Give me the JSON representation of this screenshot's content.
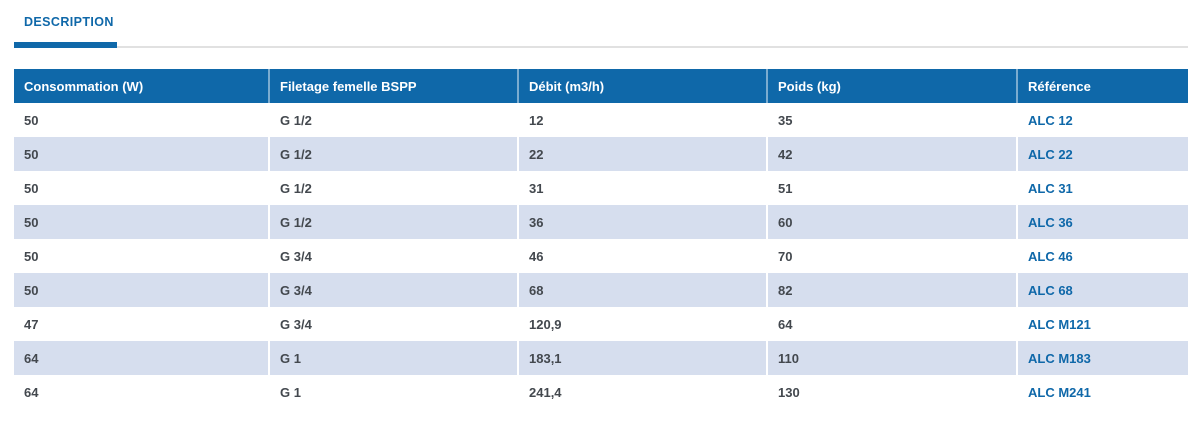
{
  "colors": {
    "brand_blue": "#0f68a9",
    "row_stripe": "#d6deee",
    "rule_gray": "#e1e1e1",
    "cell_text": "#43484e"
  },
  "tabs": {
    "description_label": "DESCRIPTION"
  },
  "table": {
    "columns": [
      "Consommation (W)",
      "Filetage femelle BSPP",
      "Débit (m3/h)",
      "Poids (kg)",
      "Référence"
    ],
    "column_keys": [
      "consommation",
      "filetage",
      "debit",
      "poids",
      "reference"
    ],
    "rows": [
      [
        "50",
        "G 1/2",
        "12",
        "35",
        "ALC 12"
      ],
      [
        "50",
        "G 1/2",
        "22",
        "42",
        "ALC 22"
      ],
      [
        "50",
        "G 1/2",
        "31",
        "51",
        "ALC 31"
      ],
      [
        "50",
        "G 1/2",
        "36",
        "60",
        "ALC 36"
      ],
      [
        "50",
        "G 3/4",
        "46",
        "70",
        "ALC 46"
      ],
      [
        "50",
        "G 3/4",
        "68",
        "82",
        "ALC 68"
      ],
      [
        "47",
        "G 3/4",
        "120,9",
        "64",
        "ALC M121"
      ],
      [
        "64",
        "G 1",
        "183,1",
        "110",
        "ALC M183"
      ],
      [
        "64",
        "G 1",
        "241,4",
        "130",
        "ALC M241"
      ]
    ]
  }
}
